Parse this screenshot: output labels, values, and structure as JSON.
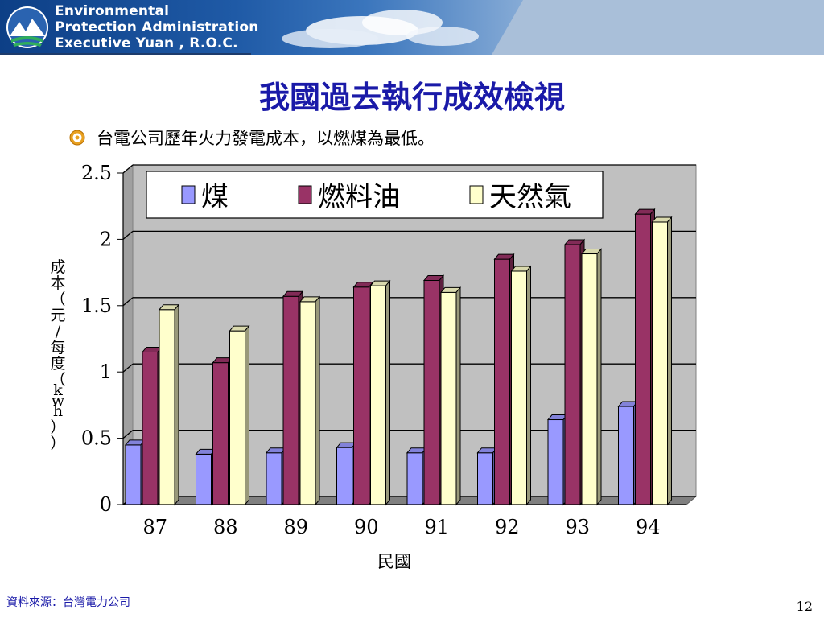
{
  "header": {
    "org_line_1": "Environmental",
    "org_line_2": "Protection Administration",
    "org_line_3": "Executive  Yuan , R.O.C.",
    "logo_icon": "epa-mountain-logo-icon"
  },
  "slide": {
    "title": "我國過去執行成效檢視",
    "bullet_icon": "target-bullet-icon",
    "bullet_text": "台電公司歷年火力發電成本，以燃煤為最低。",
    "source": "資料來源：台灣電力公司",
    "page_number": "12"
  },
  "chart_data": {
    "type": "bar",
    "categories": [
      "87",
      "88",
      "89",
      "90",
      "91",
      "92",
      "93",
      "94"
    ],
    "series": [
      {
        "name": "煤",
        "color": "#9999ff",
        "values": [
          0.45,
          0.38,
          0.39,
          0.43,
          0.39,
          0.39,
          0.64,
          0.74
        ]
      },
      {
        "name": "燃料油",
        "color": "#993366",
        "values": [
          1.15,
          1.07,
          1.57,
          1.64,
          1.69,
          1.85,
          1.96,
          2.19
        ]
      },
      {
        "name": "天然氣",
        "color": "#ffffcc",
        "values": [
          1.47,
          1.31,
          1.53,
          1.65,
          1.6,
          1.76,
          1.89,
          2.13
        ]
      }
    ],
    "xlabel": "民國",
    "ylabel": "成本（元/每度（kwh））",
    "ylim": [
      0,
      2.5
    ],
    "yticks": [
      "0",
      "0.5",
      "1",
      "1.5",
      "2",
      "2.5"
    ],
    "grid": true,
    "legend": "top"
  }
}
